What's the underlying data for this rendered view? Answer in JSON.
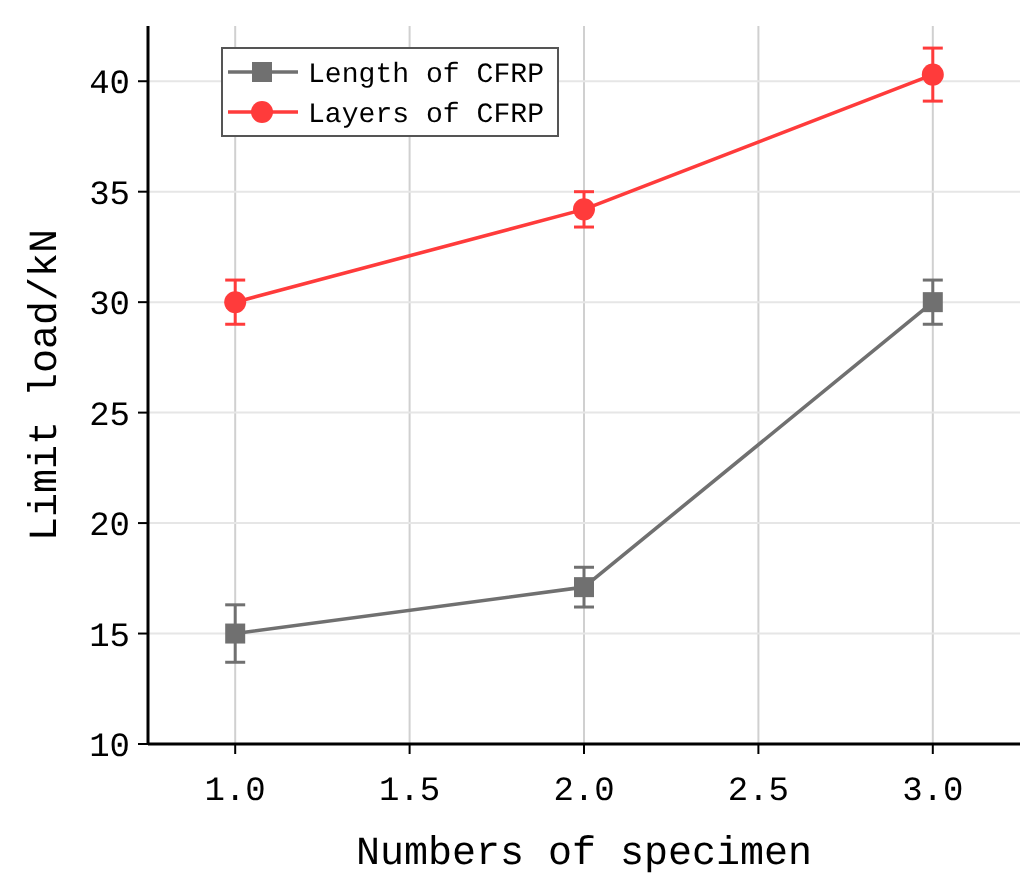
{
  "chart_data": {
    "type": "line",
    "xlabel": "Numbers of specimen",
    "ylabel": "Limit load/kN",
    "x": [
      1,
      2,
      3
    ],
    "xlim": [
      0.75,
      3.25
    ],
    "xticks": [
      {
        "value": 1,
        "label": "1.0"
      },
      {
        "value": 1.5,
        "label": "1.5"
      },
      {
        "value": 2,
        "label": "2.0"
      },
      {
        "value": 2.5,
        "label": "2.5"
      },
      {
        "value": 3,
        "label": "3.0"
      }
    ],
    "ylim": [
      10,
      42.5
    ],
    "yticks": [
      10,
      15,
      20,
      25,
      30,
      35,
      40
    ],
    "grid": true,
    "legend": "top left",
    "series": [
      {
        "name": "Length of CFRP",
        "color": "#707070",
        "marker": "square",
        "values": [
          15,
          17.1,
          30
        ],
        "errors": [
          1.3,
          0.9,
          1
        ]
      },
      {
        "name": "Layers of CFRP",
        "color": "#ff3b3b",
        "marker": "circle",
        "values": [
          30,
          34.2,
          40.3
        ],
        "errors": [
          1,
          0.8,
          1.2
        ]
      }
    ]
  }
}
